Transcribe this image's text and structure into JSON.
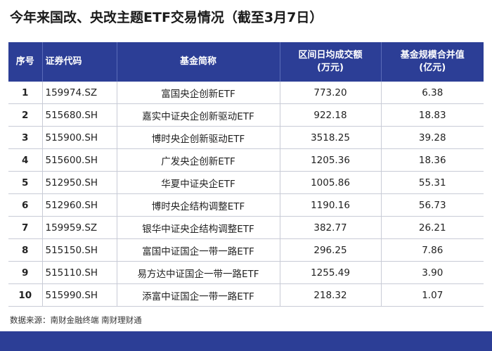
{
  "title": "今年来国改、央改主题ETF交易情况（截至3月7日）",
  "table": {
    "headers": {
      "index": "序号",
      "code": "证券代码",
      "name": "基金简称",
      "volume_line1": "区间日均成交额",
      "volume_line2": "(万元)",
      "scale_line1": "基金规模合并值",
      "scale_line2": "(亿元)"
    },
    "rows": [
      {
        "index": "1",
        "code": "159974.SZ",
        "name": "富国央企创新ETF",
        "volume": "773.20",
        "scale": "6.38"
      },
      {
        "index": "2",
        "code": "515680.SH",
        "name": "嘉实中证央企创新驱动ETF",
        "volume": "922.18",
        "scale": "18.83"
      },
      {
        "index": "3",
        "code": "515900.SH",
        "name": "博时央企创新驱动ETF",
        "volume": "3518.25",
        "scale": "39.28"
      },
      {
        "index": "4",
        "code": "515600.SH",
        "name": "广发央企创新ETF",
        "volume": "1205.36",
        "scale": "18.36"
      },
      {
        "index": "5",
        "code": "512950.SH",
        "name": "华夏中证央企ETF",
        "volume": "1005.86",
        "scale": "55.31"
      },
      {
        "index": "6",
        "code": "512960.SH",
        "name": "博时央企结构调整ETF",
        "volume": "1190.16",
        "scale": "56.73"
      },
      {
        "index": "7",
        "code": "159959.SZ",
        "name": "银华中证央企结构调整ETF",
        "volume": "382.77",
        "scale": "26.21"
      },
      {
        "index": "8",
        "code": "515150.SH",
        "name": "富国中证国企一带一路ETF",
        "volume": "296.25",
        "scale": "7.86"
      },
      {
        "index": "9",
        "code": "515110.SH",
        "name": "易方达中证国企一带一路ETF",
        "volume": "1255.49",
        "scale": "3.90"
      },
      {
        "index": "10",
        "code": "515990.SH",
        "name": "添富中证国企一带一路ETF",
        "volume": "218.32",
        "scale": "1.07"
      }
    ]
  },
  "source": "数据来源：南财金融终端 南财理财通",
  "colors": {
    "header_bg": "#2c3e96",
    "footer_bg": "#2c3e96",
    "grid": "#c8cbd6"
  }
}
